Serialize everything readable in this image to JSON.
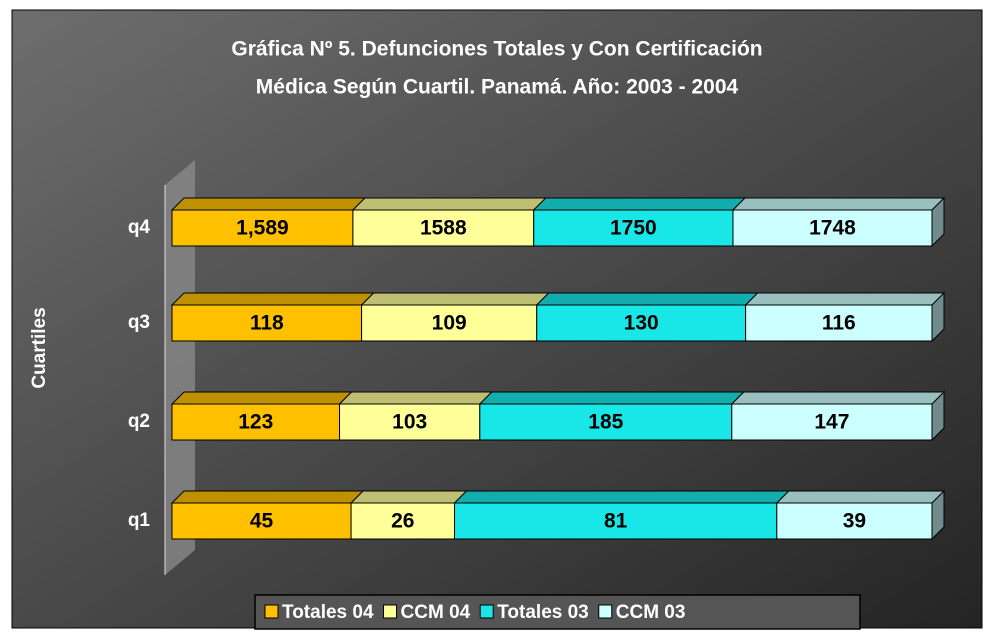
{
  "chart_data": {
    "type": "bar",
    "orientation": "horizontal",
    "stacking": "percent",
    "title": "Gráfica Nº 5. Defunciones Totales y Con Certificación",
    "subtitle": "Médica Según Cuartil. Panamá. Año: 2003 - 2004",
    "y_label": "Cuartiles",
    "categories": [
      "q1",
      "q2",
      "q3",
      "q4"
    ],
    "series": [
      {
        "name": "Totales 04",
        "color": "#ffc000",
        "values": [
          45,
          123,
          118,
          1589
        ],
        "value_labels": [
          "45",
          "123",
          "118",
          "1,589"
        ]
      },
      {
        "name": "CCM 04",
        "color": "#ffff99",
        "values": [
          26,
          103,
          109,
          1588
        ]
      },
      {
        "name": "Totales 03",
        "color": "#19e6e6",
        "values": [
          81,
          185,
          130,
          1750
        ]
      },
      {
        "name": "CCM 03",
        "color": "#ccffff",
        "values": [
          39,
          147,
          116,
          1748
        ]
      }
    ],
    "legend": "bottom"
  }
}
